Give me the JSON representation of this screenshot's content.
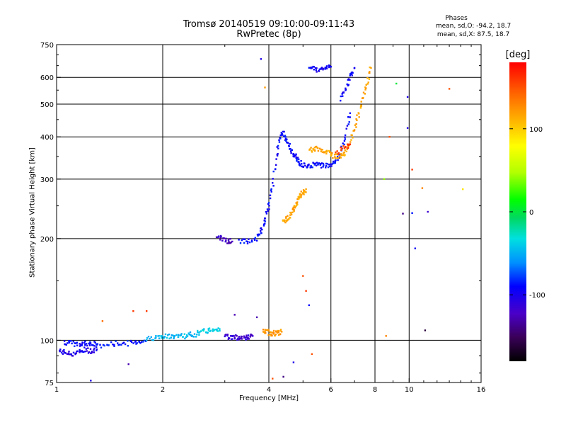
{
  "chart_data": {
    "type": "scatter",
    "title": "Tromsø 20140519 09:10:00-09:11:43",
    "subtitle": "RwPretec (8p)",
    "xlabel": "Frequency [MHz]",
    "ylabel": "Stationary phase Virtual Height [km]",
    "x_scale": "log",
    "y_scale": "log",
    "xlim": [
      1,
      16
    ],
    "ylim": [
      75,
      750
    ],
    "x_ticks": [
      "1",
      "2",
      "4",
      "6",
      "8",
      "10",
      "16"
    ],
    "y_ticks": [
      "75",
      "100",
      "200",
      "300",
      "400",
      "500",
      "600",
      "750"
    ],
    "grid": true,
    "phase_stats": {
      "heading": "Phases",
      "o_mode": "mean, sd,O: -94.2, 18.7",
      "x_mode": "mean, sd,X:  87.5, 18.7"
    },
    "colorbar": {
      "label": "[deg]",
      "range": [
        -180,
        180
      ],
      "ticks": [
        "100",
        "0",
        "-100"
      ],
      "colors": [
        "#000000",
        "#3a0058",
        "#4a00c8",
        "#0000ff",
        "#0090ff",
        "#00e0e0",
        "#00d860",
        "#00ff00",
        "#b0ff00",
        "#ffff00",
        "#ffb000",
        "#ff6000",
        "#ff0000"
      ]
    },
    "segments": [
      {
        "f": [
          1.02,
          1.06,
          1.1,
          1.15,
          1.2,
          1.25,
          1.3
        ],
        "h": [
          93,
          92,
          91,
          92,
          94,
          93,
          94
        ],
        "phase": -110
      },
      {
        "f": [
          1.05,
          1.1,
          1.15,
          1.2,
          1.25,
          1.3
        ],
        "h": [
          99,
          98,
          97,
          98,
          98,
          97
        ],
        "phase": -100
      },
      {
        "f": [
          1.3,
          1.4,
          1.5,
          1.6,
          1.7,
          1.8
        ],
        "h": [
          96,
          97,
          98,
          98,
          99,
          100
        ],
        "phase": -95
      },
      {
        "f": [
          1.8,
          1.9,
          2.0,
          2.1,
          2.2,
          2.3,
          2.4,
          2.5
        ],
        "h": [
          101,
          102,
          102,
          103,
          103,
          103,
          104,
          104
        ],
        "phase": -55
      },
      {
        "f": [
          2.5,
          2.6,
          2.7,
          2.8,
          2.9
        ],
        "h": [
          105,
          106,
          107,
          108,
          108
        ],
        "phase": -45
      },
      {
        "f": [
          3.0,
          3.1,
          3.2,
          3.3,
          3.4,
          3.5,
          3.6
        ],
        "h": [
          103,
          102,
          102,
          102,
          102,
          102,
          103
        ],
        "phase": -120
      },
      {
        "f": [
          3.85,
          3.95,
          4.05,
          4.15,
          4.25,
          4.35
        ],
        "h": [
          106,
          106,
          105,
          105,
          105,
          106
        ],
        "phase": 120
      },
      {
        "f": [
          2.85,
          2.95,
          3.05,
          3.15
        ],
        "h": [
          204,
          199,
          197,
          196
        ],
        "phase": -125
      },
      {
        "f": [
          3.3,
          3.5,
          3.7,
          3.8,
          3.9,
          4.0,
          4.1,
          4.2,
          4.3,
          4.4,
          4.5,
          4.6,
          4.7,
          4.8,
          4.9,
          5.0,
          5.2,
          5.4,
          5.6,
          5.8,
          6.0,
          6.2,
          6.4,
          6.6,
          6.8
        ],
        "h": [
          196,
          196,
          200,
          210,
          225,
          250,
          290,
          350,
          400,
          410,
          390,
          370,
          355,
          345,
          335,
          330,
          330,
          330,
          330,
          330,
          330,
          340,
          360,
          400,
          470
        ],
        "phase": -100
      },
      {
        "f": [
          6.4,
          6.6,
          6.8,
          7.0
        ],
        "h": [
          520,
          560,
          600,
          640
        ],
        "phase": -105
      },
      {
        "f": [
          4.4,
          4.5,
          4.6,
          4.7,
          4.8,
          4.9,
          5.0,
          5.1
        ],
        "h": [
          225,
          228,
          235,
          245,
          255,
          265,
          275,
          280
        ],
        "phase": 115
      },
      {
        "f": [
          5.2,
          5.4,
          5.6,
          5.8,
          6.0,
          6.2,
          6.4,
          6.6,
          6.8,
          7.0,
          7.2,
          7.4,
          7.6,
          7.8
        ],
        "h": [
          365,
          370,
          365,
          360,
          355,
          350,
          352,
          360,
          380,
          420,
          470,
          520,
          580,
          640
        ],
        "phase": 115
      },
      {
        "f": [
          5.2,
          5.4,
          5.6,
          5.8,
          6.0
        ],
        "h": [
          640,
          635,
          630,
          640,
          645
        ],
        "phase": -105
      },
      {
        "f": [
          6.2,
          6.5,
          6.8
        ],
        "h": [
          355,
          370,
          380
        ],
        "phase": 160
      }
    ],
    "isolated_points": [
      {
        "f": 3.8,
        "h": 680,
        "phase": -110
      },
      {
        "f": 3.9,
        "h": 560,
        "phase": 120
      },
      {
        "f": 9.2,
        "h": 575,
        "phase": 0
      },
      {
        "f": 9.9,
        "h": 525,
        "phase": -110
      },
      {
        "f": 9.9,
        "h": 425,
        "phase": -110
      },
      {
        "f": 8.8,
        "h": 400,
        "phase": 150
      },
      {
        "f": 10.2,
        "h": 320,
        "phase": 160
      },
      {
        "f": 8.5,
        "h": 300,
        "phase": 40
      },
      {
        "f": 10.9,
        "h": 282,
        "phase": 130
      },
      {
        "f": 14.2,
        "h": 280,
        "phase": 90
      },
      {
        "f": 9.6,
        "h": 237,
        "phase": -140
      },
      {
        "f": 11.3,
        "h": 240,
        "phase": -120
      },
      {
        "f": 10.2,
        "h": 238,
        "phase": -95
      },
      {
        "f": 13.0,
        "h": 555,
        "phase": 150
      },
      {
        "f": 10.4,
        "h": 187,
        "phase": -105
      },
      {
        "f": 5.0,
        "h": 155,
        "phase": 150
      },
      {
        "f": 5.1,
        "h": 140,
        "phase": 160
      },
      {
        "f": 5.2,
        "h": 127,
        "phase": -100
      },
      {
        "f": 1.65,
        "h": 122,
        "phase": 160
      },
      {
        "f": 1.8,
        "h": 122,
        "phase": 160
      },
      {
        "f": 1.35,
        "h": 114,
        "phase": 140
      },
      {
        "f": 3.2,
        "h": 119,
        "phase": -130
      },
      {
        "f": 3.7,
        "h": 117,
        "phase": -130
      },
      {
        "f": 8.6,
        "h": 103,
        "phase": 130
      },
      {
        "f": 11.1,
        "h": 107,
        "phase": -160
      },
      {
        "f": 1.6,
        "h": 85,
        "phase": -130
      },
      {
        "f": 5.3,
        "h": 91,
        "phase": 150
      },
      {
        "f": 4.7,
        "h": 86,
        "phase": -110
      },
      {
        "f": 4.4,
        "h": 78,
        "phase": -140
      },
      {
        "f": 4.1,
        "h": 77,
        "phase": 150
      },
      {
        "f": 1.25,
        "h": 76,
        "phase": -110
      }
    ]
  }
}
